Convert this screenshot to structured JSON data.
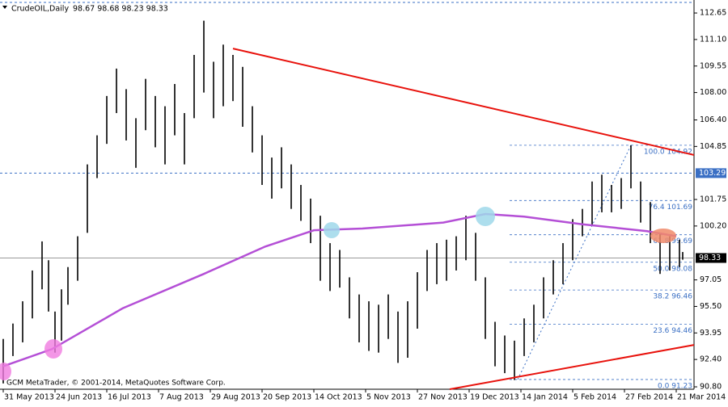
{
  "chart_data": {
    "type": "ohlc",
    "title": "CrudeOIL,Daily",
    "subtitle": "98.67 98.68 98.23 98.33",
    "footer": "GCM MetaTrader, © 2001-2014, MetaQuotes Software Corp.",
    "color": "#000000",
    "xlim": [
      -0.5,
      213.5
    ],
    "xticks": [
      {
        "value": 0,
        "label": "31 May 2013"
      },
      {
        "value": 16,
        "label": "24 Jun 2013"
      },
      {
        "value": 32,
        "label": "16 Jul 2013"
      },
      {
        "value": 48,
        "label": "7 Aug 2013"
      },
      {
        "value": 64,
        "label": "29 Aug 2013"
      },
      {
        "value": 80,
        "label": "20 Sep 2013"
      },
      {
        "value": 96,
        "label": "14 Oct 2013"
      },
      {
        "value": 112,
        "label": "5 Nov 2013"
      },
      {
        "value": 128,
        "label": "27 Nov 2013"
      },
      {
        "value": 144,
        "label": "19 Dec 2013"
      },
      {
        "value": 160,
        "label": "14 Jan 2014"
      },
      {
        "value": 176,
        "label": "5 Feb 2014"
      },
      {
        "value": 192,
        "label": "27 Feb 2014"
      },
      {
        "value": 208,
        "label": "21 Mar 2014"
      }
    ],
    "ylim": [
      90.66,
      113.22
    ],
    "yticks": [
      112.65,
      {
        "value": 111.1,
        "label": "111.10"
      },
      109.55,
      {
        "value": 108,
        "label": "108.00"
      },
      {
        "value": 106.4,
        "label": "106.40"
      },
      104.85,
      101.75,
      {
        "value": 100.2,
        "label": "100.20"
      },
      97.05,
      {
        "value": 95.5,
        "label": "95.50"
      },
      93.95,
      {
        "value": 92.4,
        "label": "92.40"
      },
      {
        "value": 90.8,
        "label": "90.80"
      }
    ],
    "x": [
      0,
      3,
      6,
      9,
      12,
      14,
      16,
      18,
      20,
      23,
      26,
      29,
      32,
      35,
      38,
      41,
      44,
      47,
      50,
      53,
      56,
      59,
      62,
      65,
      68,
      71,
      74,
      77,
      80,
      83,
      86,
      89,
      92,
      95,
      98,
      101,
      104,
      107,
      110,
      113,
      116,
      119,
      122,
      125,
      128,
      131,
      134,
      137,
      140,
      143,
      146,
      149,
      152,
      155,
      158,
      161,
      164,
      167,
      170,
      173,
      176,
      179,
      182,
      185,
      188,
      191,
      194,
      197,
      200,
      203,
      206,
      209,
      210
    ],
    "high": [
      93.6,
      94.5,
      95.8,
      97.6,
      99.3,
      98.2,
      95.2,
      96.5,
      97.8,
      99.6,
      103.8,
      105.5,
      107.8,
      109.4,
      108.2,
      106.5,
      108.8,
      107.8,
      107.2,
      108.5,
      106.8,
      110.2,
      112.2,
      109.8,
      110.8,
      110.2,
      109.5,
      107.2,
      105.5,
      104.2,
      104.8,
      103.8,
      102.6,
      101.8,
      100.8,
      99.2,
      98.8,
      97.2,
      96.2,
      95.8,
      95.6,
      96.2,
      95.2,
      95.8,
      97.5,
      98.8,
      99.2,
      99.4,
      99.6,
      100.8,
      99.8,
      97.2,
      94.6,
      93.8,
      93.5,
      94.8,
      95.6,
      97.2,
      98.2,
      99.2,
      100.6,
      101.2,
      102.8,
      103.2,
      102.6,
      103.0,
      104.92,
      102.8,
      101.6,
      99.8,
      99.6,
      99.4,
      98.68
    ],
    "low": [
      91.0,
      92.6,
      93.4,
      94.8,
      96.5,
      95.2,
      92.8,
      93.5,
      95.6,
      97.0,
      99.8,
      103.0,
      105.0,
      106.8,
      105.2,
      103.6,
      105.8,
      104.8,
      103.8,
      105.5,
      103.8,
      106.5,
      108.0,
      106.5,
      107.2,
      107.5,
      106.0,
      104.5,
      102.6,
      101.8,
      102.4,
      101.2,
      100.5,
      99.2,
      97.0,
      96.4,
      96.6,
      94.8,
      93.4,
      92.9,
      92.8,
      93.6,
      92.2,
      92.5,
      94.2,
      96.4,
      96.8,
      97.0,
      97.6,
      98.2,
      97.0,
      93.6,
      92.0,
      91.6,
      91.2,
      92.6,
      93.4,
      94.8,
      96.2,
      96.8,
      98.2,
      99.6,
      100.2,
      101.0,
      101.0,
      101.2,
      102.4,
      100.4,
      99.2,
      97.4,
      97.6,
      97.8,
      98.23
    ],
    "moving_average": {
      "color": "#b44fd6",
      "x": [
        0,
        15,
        37,
        62,
        81,
        96,
        111,
        136,
        149,
        161,
        179,
        199,
        208
      ],
      "values": [
        92.0,
        93.0,
        95.4,
        97.4,
        99.0,
        99.95,
        100.05,
        100.4,
        100.9,
        100.75,
        100.3,
        99.9,
        99.6
      ]
    },
    "trendlines": [
      {
        "color": "#e8120c",
        "x": [
          71,
          213.5
        ],
        "values": [
          110.57,
          104.35
        ]
      },
      {
        "color": "#e8120c",
        "x": [
          138,
          213.5
        ],
        "values": [
          90.66,
          93.25
        ]
      }
    ],
    "fib": {
      "color": "#3a6fc4",
      "x": [
        159,
        194
      ],
      "levels": [
        {
          "value": 104.92,
          "label": "100.0 104.92"
        },
        {
          "value": 101.69,
          "label": "76.4 101.69"
        },
        {
          "value": 99.69,
          "label": "61.8 99.69"
        },
        {
          "value": 98.08,
          "label": "50.0 98.08"
        },
        {
          "value": 96.46,
          "label": "38.2 96.46"
        },
        {
          "value": 94.46,
          "label": "23.6 94.46"
        },
        {
          "value": 91.23,
          "label": "0.0 91.23"
        }
      ]
    },
    "hlines": [
      {
        "value": 103.29,
        "color": "#3a6fc4"
      },
      {
        "value": 98.33,
        "color": "#9a9a9a"
      }
    ]
  }
}
